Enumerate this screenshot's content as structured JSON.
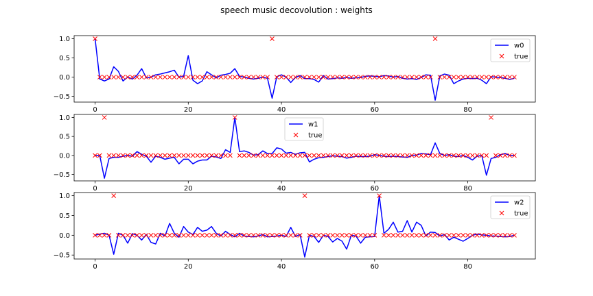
{
  "title": "speech music decovolution : weights",
  "chart_data": [
    {
      "type": "line",
      "xlim": [
        -4.5,
        94.5
      ],
      "ylim": [
        -0.65,
        1.08
      ],
      "xticks": [
        0,
        20,
        40,
        60,
        80
      ],
      "yticks": [
        -0.5,
        0.0,
        0.5,
        1.0
      ],
      "ytick_labels": [
        "−0.5",
        "0.0",
        "0.5",
        "1.0"
      ],
      "legend_position": "upper-right",
      "series": [
        {
          "name": "w0",
          "color": "#0000ff",
          "marker": "line",
          "values": [
            1.0,
            -0.05,
            -0.1,
            -0.05,
            0.27,
            0.15,
            -0.1,
            0.0,
            -0.05,
            0.05,
            0.22,
            -0.02,
            0.0,
            0.06,
            0.08,
            0.11,
            0.14,
            0.18,
            0.0,
            0.02,
            0.56,
            -0.08,
            -0.17,
            -0.1,
            0.14,
            0.06,
            -0.02,
            0.05,
            0.07,
            0.1,
            0.22,
            0.02,
            0.0,
            -0.03,
            -0.05,
            -0.03,
            0.0,
            -0.03,
            -0.55,
            0.01,
            0.06,
            0.0,
            -0.14,
            -0.01,
            0.04,
            -0.04,
            -0.04,
            -0.06,
            -0.13,
            0.04,
            -0.05,
            -0.04,
            -0.02,
            -0.03,
            -0.01,
            -0.03,
            -0.02,
            -0.01,
            0.02,
            0.03,
            0.02,
            0.01,
            0.04,
            0.03,
            0.0,
            0.02,
            -0.03,
            -0.05,
            -0.04,
            -0.06,
            -0.01,
            0.06,
            0.05,
            -0.6,
            0.03,
            0.08,
            0.05,
            -0.17,
            -0.1,
            -0.05,
            -0.03,
            -0.04,
            -0.03,
            -0.08,
            -0.17,
            0.01,
            0.0,
            -0.01,
            -0.03,
            -0.06,
            -0.03
          ]
        },
        {
          "name": "true",
          "color": "#ff0000",
          "marker": "x",
          "values": [
            1,
            0,
            0,
            0,
            0,
            0,
            0,
            0,
            0,
            0,
            0,
            0,
            0,
            0,
            0,
            0,
            0,
            0,
            0,
            0,
            0,
            0,
            0,
            0,
            0,
            0,
            0,
            0,
            0,
            0,
            0,
            0,
            0,
            0,
            0,
            0,
            0,
            0,
            1,
            0,
            0,
            0,
            0,
            0,
            0,
            0,
            0,
            0,
            0,
            0,
            0,
            0,
            0,
            0,
            0,
            0,
            0,
            0,
            0,
            0,
            0,
            0,
            0,
            0,
            0,
            0,
            0,
            0,
            0,
            0,
            0,
            0,
            0,
            1,
            0,
            0,
            0,
            0,
            0,
            0,
            0,
            0,
            0,
            0,
            0,
            0,
            0,
            0,
            0,
            0,
            0
          ]
        }
      ]
    },
    {
      "type": "line",
      "xlim": [
        -4.5,
        94.5
      ],
      "ylim": [
        -0.67,
        1.08
      ],
      "xticks": [
        0,
        20,
        40,
        60,
        80
      ],
      "yticks": [
        -0.5,
        0.0,
        0.5,
        1.0
      ],
      "ytick_labels": [
        "−0.5",
        "0.0",
        "0.5",
        "1.0"
      ],
      "legend_position": "upper-center",
      "series": [
        {
          "name": "w1",
          "color": "#0000ff",
          "marker": "line",
          "values": [
            0.0,
            0.0,
            -0.6,
            -0.08,
            -0.05,
            -0.05,
            -0.02,
            0.0,
            -0.02,
            0.1,
            0.03,
            -0.02,
            -0.18,
            -0.02,
            -0.05,
            -0.1,
            -0.07,
            -0.05,
            -0.22,
            -0.1,
            -0.1,
            -0.22,
            -0.15,
            -0.12,
            -0.12,
            -0.02,
            -0.04,
            -0.08,
            0.15,
            0.08,
            1.0,
            0.1,
            0.12,
            0.08,
            0.01,
            0.02,
            0.12,
            0.05,
            0.05,
            0.2,
            0.17,
            0.06,
            0.08,
            0.03,
            0.07,
            0.08,
            -0.17,
            -0.1,
            -0.06,
            -0.05,
            -0.03,
            -0.01,
            -0.02,
            -0.03,
            -0.07,
            -0.05,
            -0.02,
            -0.03,
            -0.03,
            -0.02,
            0.02,
            0.0,
            -0.02,
            -0.03,
            -0.02,
            -0.03,
            -0.04,
            -0.05,
            0.0,
            0.01,
            0.05,
            0.04,
            0.02,
            0.33,
            0.05,
            0.0,
            0.02,
            -0.02,
            -0.03,
            0.0,
            -0.05,
            -0.12,
            -0.02,
            0.0,
            -0.52,
            -0.08,
            -0.05,
            0.02,
            0.05,
            0.0,
            0.0
          ]
        },
        {
          "name": "true",
          "color": "#ff0000",
          "marker": "x",
          "values": [
            0,
            0,
            1,
            0,
            0,
            0,
            0,
            0,
            0,
            0,
            0,
            0,
            0,
            0,
            0,
            0,
            0,
            0,
            0,
            0,
            0,
            0,
            0,
            0,
            0,
            0,
            0,
            0,
            0,
            0,
            1,
            0,
            0,
            0,
            0,
            0,
            0,
            0,
            0,
            0,
            0,
            0,
            0,
            0,
            0,
            0,
            0,
            0,
            0,
            0,
            0,
            0,
            0,
            0,
            0,
            0,
            0,
            0,
            0,
            0,
            0,
            0,
            0,
            0,
            0,
            0,
            0,
            0,
            0,
            0,
            0,
            0,
            0,
            0,
            0,
            0,
            0,
            0,
            0,
            0,
            0,
            0,
            0,
            0,
            0,
            1,
            0,
            0,
            0,
            0,
            0
          ]
        }
      ]
    },
    {
      "type": "line",
      "xlim": [
        -4.5,
        94.5
      ],
      "ylim": [
        -0.6,
        1.08
      ],
      "xticks": [
        0,
        20,
        40,
        60,
        80
      ],
      "yticks": [
        -0.5,
        0.0,
        0.5,
        1.0
      ],
      "ytick_labels": [
        "−0.5",
        "0.0",
        "0.5",
        "1.0"
      ],
      "legend_position": "upper-right",
      "series": [
        {
          "name": "w2",
          "color": "#0000ff",
          "marker": "line",
          "values": [
            0.0,
            0.03,
            0.05,
            0.0,
            -0.48,
            0.05,
            0.0,
            -0.2,
            0.04,
            0.0,
            -0.12,
            0.02,
            -0.18,
            -0.22,
            0.05,
            -0.02,
            0.3,
            0.05,
            -0.05,
            0.22,
            0.08,
            0.02,
            0.2,
            0.1,
            0.13,
            0.22,
            0.05,
            -0.02,
            0.1,
            0.02,
            -0.04,
            0.05,
            -0.02,
            -0.03,
            -0.04,
            -0.02,
            0.02,
            -0.04,
            -0.03,
            -0.02,
            0.0,
            -0.03,
            0.2,
            -0.03,
            0.02,
            -0.55,
            0.0,
            -0.03,
            -0.18,
            0.0,
            -0.03,
            -0.17,
            -0.08,
            -0.15,
            -0.35,
            0.0,
            -0.02,
            -0.2,
            -0.05,
            -0.04,
            -0.03,
            1.0,
            0.05,
            0.15,
            0.33,
            0.08,
            0.1,
            0.37,
            0.08,
            0.33,
            0.25,
            -0.02,
            0.08,
            0.07,
            -0.02,
            0.02,
            -0.12,
            -0.05,
            -0.1,
            -0.15,
            -0.08,
            0.0,
            0.03,
            0.01,
            0.0,
            -0.02,
            -0.02,
            -0.03,
            -0.04,
            -0.03,
            0.0
          ]
        },
        {
          "name": "true",
          "color": "#ff0000",
          "marker": "x",
          "values": [
            0,
            0,
            0,
            0,
            1,
            0,
            0,
            0,
            0,
            0,
            0,
            0,
            0,
            0,
            0,
            0,
            0,
            0,
            0,
            0,
            0,
            0,
            0,
            0,
            0,
            0,
            0,
            0,
            0,
            0,
            0,
            0,
            0,
            0,
            0,
            0,
            0,
            0,
            0,
            0,
            0,
            0,
            0,
            0,
            0,
            1,
            0,
            0,
            0,
            0,
            0,
            0,
            0,
            0,
            0,
            0,
            0,
            0,
            0,
            0,
            0,
            1,
            0,
            0,
            0,
            0,
            0,
            0,
            0,
            0,
            0,
            0,
            0,
            0,
            0,
            0,
            0,
            0,
            0,
            0,
            0,
            0,
            0,
            0,
            0,
            0,
            0,
            0,
            0,
            0,
            0
          ]
        }
      ]
    }
  ]
}
